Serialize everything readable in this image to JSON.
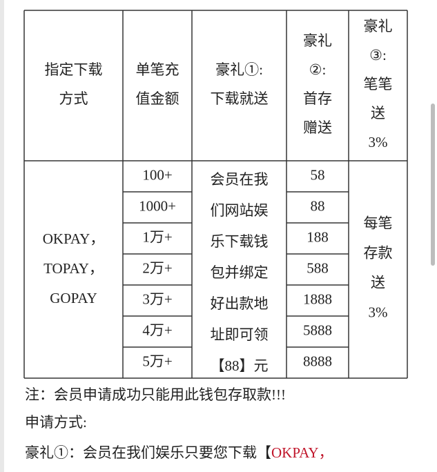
{
  "table": {
    "header": [
      [
        "指定下载",
        "方式"
      ],
      [
        "单笔充",
        "值金额"
      ],
      [
        "豪礼①:",
        "下载就送"
      ],
      [
        "豪礼",
        "②:",
        "首存",
        "赠送"
      ],
      [
        "豪礼",
        "③:",
        "笔笔",
        "送",
        "3%"
      ]
    ],
    "methods": [
      "OKPAY，",
      "TOPAY，",
      "GOPAY"
    ],
    "amounts": [
      "100+",
      "1000+",
      "1万+",
      "2万+",
      "3万+",
      "4万+",
      "5万+"
    ],
    "gift1": [
      "会员在我",
      "们网站娱",
      "乐下载钱",
      "包并绑定",
      "好出款地",
      "址即可领",
      "【88】元"
    ],
    "gift2": [
      "58",
      "88",
      "188",
      "588",
      "1888",
      "5888",
      "8888"
    ],
    "gift3": [
      "每笔",
      "存款",
      "送",
      "3%"
    ]
  },
  "notes": [
    "注：会员申请成功只能用此钱包存取款!!!",
    "申请方式:"
  ],
  "last_line": {
    "text": "豪礼①：会员在我们娱乐只要您下载【",
    "highlight": "OKPAY，"
  }
}
